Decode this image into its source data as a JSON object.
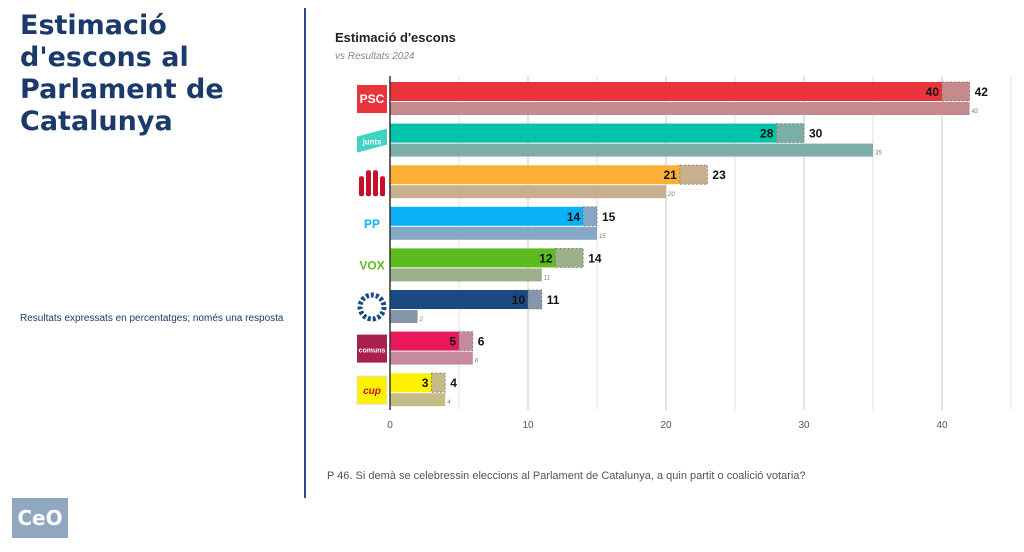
{
  "page": {
    "title": "Estimació d'escons al Parlament de Catalunya",
    "note": "Resultats expressats en percentatges; només una resposta",
    "question": "P 46.  Si demà se celebressin eleccions al Parlament de Catalunya, a quin partit o coalició votaria?",
    "logo_text": "CeO"
  },
  "chart_data": {
    "type": "bar",
    "orientation": "horizontal",
    "title": "Estimació d'escons",
    "subtitle": "vs Resultats 2024",
    "categories": [
      "PSC",
      "junts",
      "ERC",
      "PP",
      "VOX",
      "Aliança Catalana",
      "comuns",
      "cup"
    ],
    "logo_labels": [
      "PSC",
      "junts",
      "",
      "PP",
      "VOX",
      "",
      "comuns",
      "cup"
    ],
    "series": [
      {
        "role": "estimate_min",
        "values": [
          40,
          28,
          21,
          14,
          12,
          10,
          5,
          3
        ]
      },
      {
        "role": "estimate_max",
        "values": [
          42,
          30,
          23,
          15,
          14,
          11,
          6,
          4
        ]
      },
      {
        "name": "Resultats 2024",
        "values": [
          42,
          35,
          20,
          15,
          11,
          2,
          6,
          4
        ]
      }
    ],
    "colors": [
      "#e8343a",
      "#00c4aa",
      "#fbb034",
      "#0bb0f5",
      "#5cbc1f",
      "#1a4a80",
      "#e8185a",
      "#fff200"
    ],
    "result_colors": [
      "#c48a8e",
      "#7aaea6",
      "#c8b08e",
      "#86a8c6",
      "#9cb08a",
      "#8796aa",
      "#c68a9e",
      "#c4bc84"
    ],
    "xlim": [
      0,
      45
    ],
    "xticks": [
      0,
      10,
      20,
      30,
      40
    ],
    "grid": true
  }
}
